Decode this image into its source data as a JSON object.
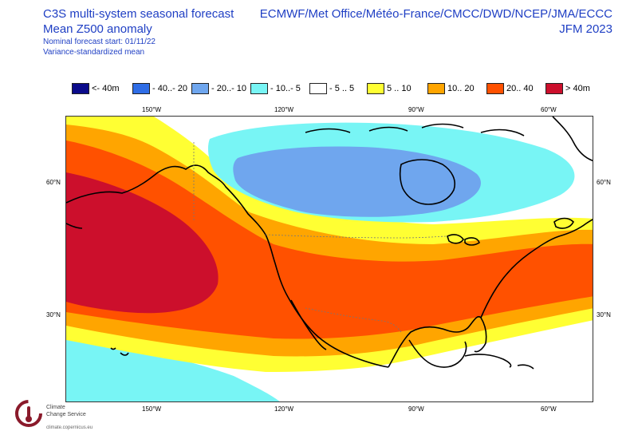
{
  "header": {
    "title": "C3S multi-system seasonal forecast",
    "subtitle": "Mean Z500 anomaly",
    "start": "Nominal forecast start: 01/11/22",
    "method": "Variance-standardized mean",
    "centres": "ECMWF/Met Office/Météo-France/CMCC/DWD/NCEP/JMA/ECCC",
    "period": "JFM 2023"
  },
  "legend": {
    "items": [
      {
        "label": "<- 40m",
        "color": "#0a0a8a"
      },
      {
        "label": "- 40..- 20",
        "color": "#2f6de6"
      },
      {
        "label": "- 20..- 10",
        "color": "#6fa6ee"
      },
      {
        "label": "- 10..- 5",
        "color": "#78f5f5"
      },
      {
        "label": "- 5 .. 5",
        "color": "#ffffff"
      },
      {
        "label": "5 .. 10",
        "color": "#ffff33"
      },
      {
        "label": "10.. 20",
        "color": "#ffa500"
      },
      {
        "label": "20.. 40",
        "color": "#ff5100"
      },
      {
        "label": "> 40m",
        "color": "#cc0f2c"
      }
    ]
  },
  "axes": {
    "top_ticks": [
      "150°W",
      "120°W",
      "90°W",
      "60°W"
    ],
    "bottom_ticks": [
      "150°W",
      "120°W",
      "90°W",
      "60°W"
    ],
    "left_ticks": [
      "60°N",
      "30°N"
    ],
    "right_ticks": [
      "60°N",
      "30°N"
    ]
  },
  "branding": {
    "name_line1": "Climate",
    "name_line2": "Change Service",
    "url": "climate.copernicus.eu"
  }
}
